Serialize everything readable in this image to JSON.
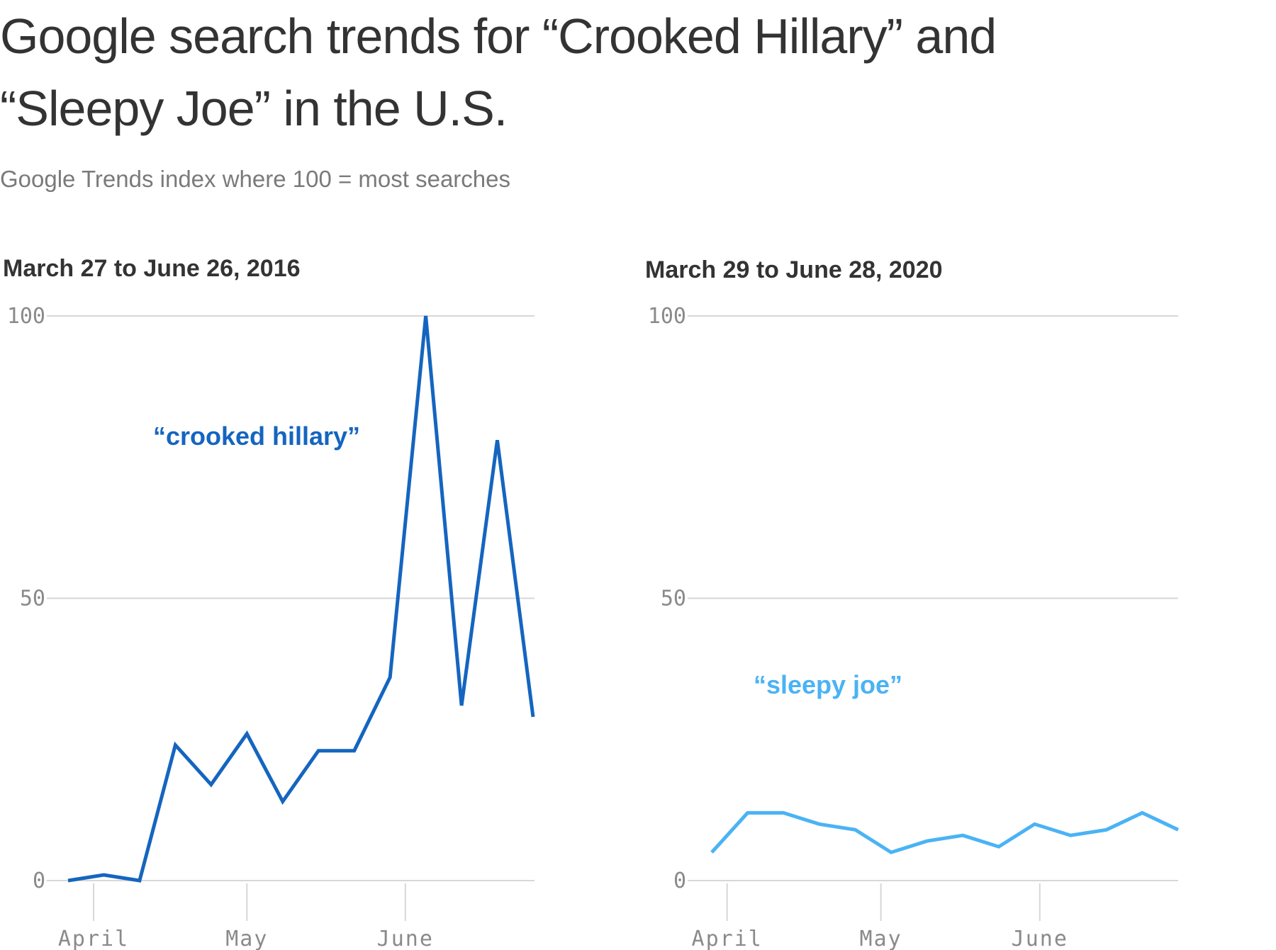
{
  "title": "Google search trends for “Crooked Hillary” and “Sleepy Joe” in the U.S.",
  "subtitle": "Google Trends index where 100 = most searches",
  "chart_data": [
    {
      "type": "line",
      "title": "March 27 to June 26, 2016",
      "ylim": [
        0,
        100
      ],
      "yticks": [
        0,
        50,
        100
      ],
      "xticks": [
        "April",
        "May",
        "June"
      ],
      "grid": true,
      "color": "#1565c0",
      "series": [
        {
          "name": "“crooked hillary”",
          "x": [
            "2016-03-27",
            "2016-04-03",
            "2016-04-10",
            "2016-04-17",
            "2016-04-24",
            "2016-05-01",
            "2016-05-08",
            "2016-05-15",
            "2016-05-22",
            "2016-05-29",
            "2016-06-05",
            "2016-06-12",
            "2016-06-19",
            "2016-06-26"
          ],
          "values": [
            0,
            1,
            0,
            24,
            17,
            26,
            14,
            23,
            23,
            36,
            100,
            31,
            78,
            29
          ]
        }
      ]
    },
    {
      "type": "line",
      "title": "March 29 to June 28, 2020",
      "ylim": [
        0,
        100
      ],
      "yticks": [
        0,
        50,
        100
      ],
      "xticks": [
        "April",
        "May",
        "June"
      ],
      "grid": true,
      "color": "#4ab3f4",
      "series": [
        {
          "name": "“sleepy joe”",
          "x": [
            "2020-03-29",
            "2020-04-05",
            "2020-04-12",
            "2020-04-19",
            "2020-04-26",
            "2020-05-03",
            "2020-05-10",
            "2020-05-17",
            "2020-05-24",
            "2020-05-31",
            "2020-06-07",
            "2020-06-14",
            "2020-06-21",
            "2020-06-28"
          ],
          "values": [
            5,
            12,
            12,
            10,
            9,
            5,
            7,
            8,
            6,
            10,
            8,
            9,
            12,
            9
          ]
        }
      ]
    }
  ]
}
